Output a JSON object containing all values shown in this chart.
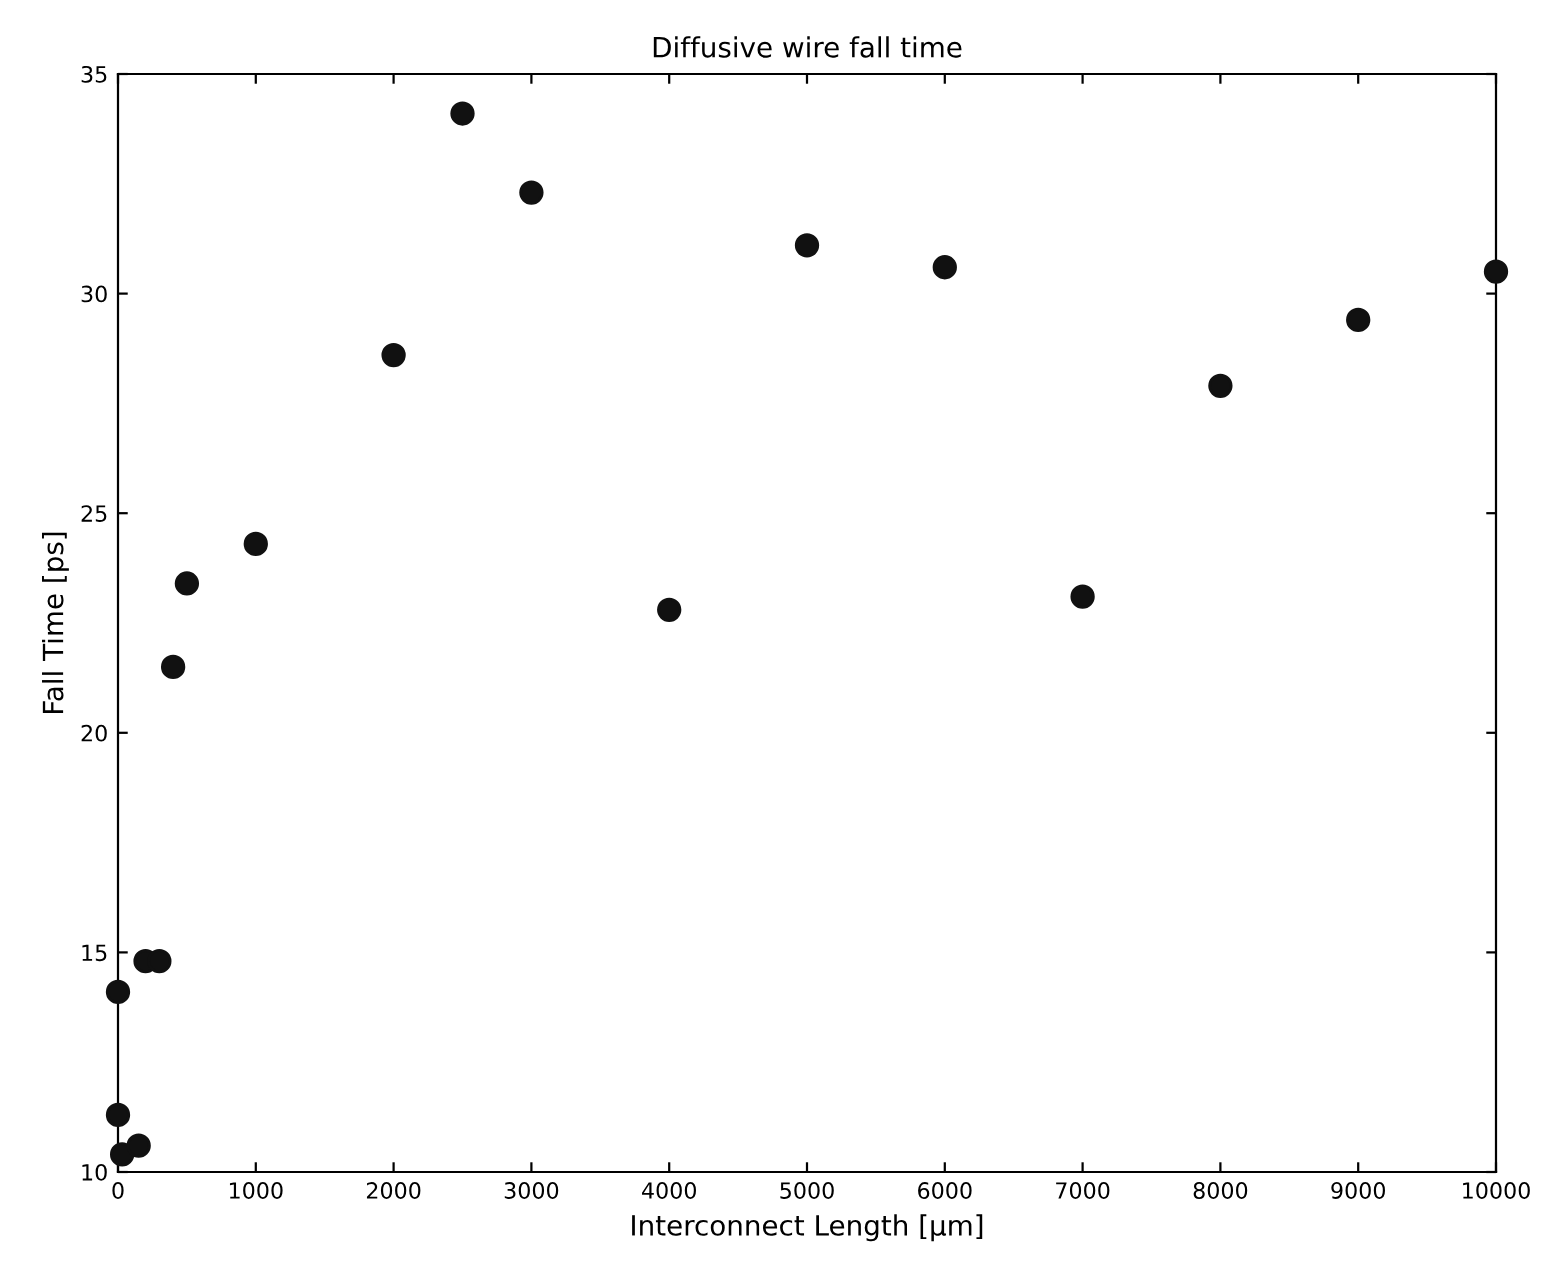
{
  "chart_data": {
    "type": "scatter",
    "title": "Diffusive wire fall time",
    "xlabel": "Interconnect Length [µm]",
    "ylabel": "Fall Time [ps]",
    "x": [
      0,
      0,
      30,
      150,
      200,
      300,
      400,
      500,
      1000,
      2000,
      2500,
      3000,
      4000,
      5000,
      6000,
      7000,
      8000,
      9000,
      10000
    ],
    "values": [
      14.1,
      11.3,
      10.4,
      10.6,
      14.8,
      14.8,
      21.5,
      23.4,
      24.3,
      28.6,
      34.1,
      32.3,
      22.8,
      31.1,
      30.6,
      23.1,
      27.9,
      29.4,
      30.5
    ],
    "color": "#111111",
    "marker": "circle",
    "xlim": [
      0,
      10000
    ],
    "ylim": [
      10,
      35
    ],
    "xticks": [
      0,
      1000,
      2000,
      3000,
      4000,
      5000,
      6000,
      7000,
      8000,
      9000,
      10000
    ],
    "yticks": [
      10,
      15,
      20,
      25,
      30,
      35
    ],
    "grid": false
  }
}
